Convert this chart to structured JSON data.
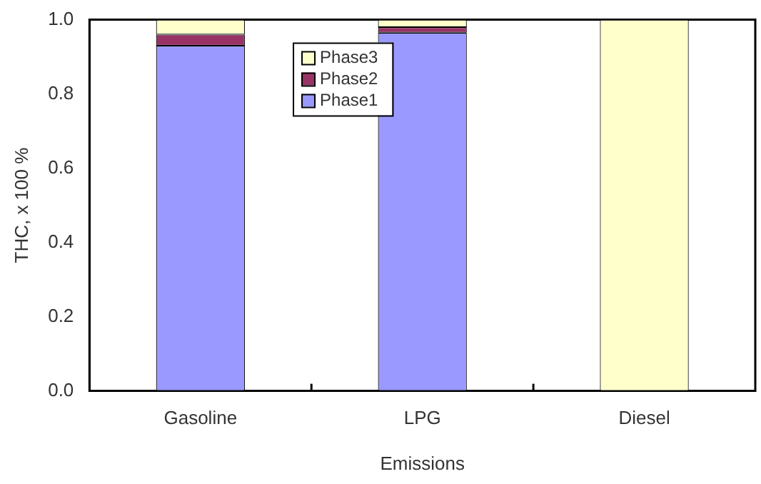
{
  "chart_data": {
    "type": "bar",
    "stacked": true,
    "xlabel": "Emissions",
    "ylabel": "THC, x 100 %",
    "categories": [
      "Gasoline",
      "LPG",
      "Diesel"
    ],
    "series": [
      {
        "name": "Phase1",
        "color": "#9999ff",
        "values": [
          0.93,
          0.965,
          0
        ]
      },
      {
        "name": "Phase2",
        "color": "#993366",
        "values": [
          0.03,
          0.015,
          0
        ]
      },
      {
        "name": "Phase3",
        "color": "#ffffcc",
        "values": [
          0.04,
          0.02,
          1.0
        ]
      }
    ],
    "ylim": [
      0,
      1.0
    ],
    "yticks": [
      {
        "value": 0,
        "label": "0.0"
      },
      {
        "value": 0.2,
        "label": "0.2"
      },
      {
        "value": 0.4,
        "label": "0.4"
      },
      {
        "value": 0.6,
        "label": "0.6"
      },
      {
        "value": 0.8,
        "label": "0.8"
      },
      {
        "value": 1.0,
        "label": "1.0"
      }
    ],
    "grid": false,
    "legend": "top"
  }
}
